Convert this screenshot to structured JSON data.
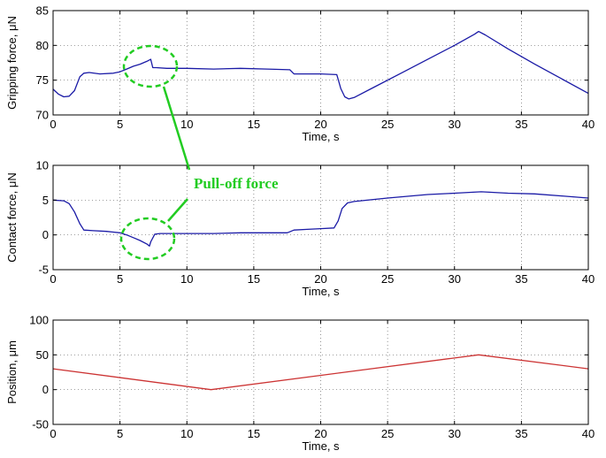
{
  "chart_data": [
    {
      "type": "line",
      "xlabel": "Time, s",
      "ylabel": "Gripping force, μN",
      "xlim": [
        0,
        40
      ],
      "ylim": [
        70,
        85
      ],
      "xticks": [
        0,
        5,
        10,
        15,
        20,
        25,
        30,
        35,
        40
      ],
      "yticks": [
        70,
        75,
        80,
        85
      ],
      "grid": true,
      "line_color": "#1a1aa6",
      "series": [
        {
          "x": [
            0,
            0.4,
            0.8,
            1.2,
            1.6,
            2.0,
            2.3,
            2.7,
            3.5,
            4.5,
            5.0,
            5.5,
            6.0,
            6.5,
            7.0,
            7.3,
            7.45,
            7.7,
            8.5,
            10,
            12,
            14,
            16,
            17.7,
            18.0,
            19,
            20,
            21.2,
            21.5,
            21.8,
            22.1,
            22.5,
            24,
            26,
            28,
            30,
            31.5,
            31.8,
            32.3,
            34,
            36,
            38,
            40
          ],
          "y": [
            73.7,
            73.0,
            72.6,
            72.7,
            73.5,
            75.5,
            76.0,
            76.1,
            75.9,
            76.0,
            76.2,
            76.6,
            77.0,
            77.3,
            77.7,
            78.0,
            76.8,
            76.8,
            76.7,
            76.7,
            76.6,
            76.7,
            76.6,
            76.5,
            75.9,
            75.9,
            75.9,
            75.8,
            73.8,
            72.6,
            72.3,
            72.5,
            74.0,
            76.0,
            78.0,
            80.0,
            81.6,
            82.0,
            81.5,
            79.5,
            77.3,
            75.2,
            73.1
          ]
        }
      ]
    },
    {
      "type": "line",
      "xlabel": "Time, s",
      "ylabel": "Contact force, μN",
      "xlim": [
        0,
        40
      ],
      "ylim": [
        -5,
        10
      ],
      "xticks": [
        0,
        5,
        10,
        15,
        20,
        25,
        30,
        35,
        40
      ],
      "yticks": [
        -5,
        0,
        5,
        10
      ],
      "grid": true,
      "line_color": "#1a1aa6",
      "series": [
        {
          "x": [
            0,
            0.8,
            1.2,
            1.6,
            2.0,
            2.3,
            3.0,
            4.0,
            5.0,
            5.5,
            6.0,
            6.5,
            7.0,
            7.2,
            7.3,
            7.6,
            8.0,
            10,
            12,
            14,
            16,
            17.5,
            18.0,
            19,
            20,
            21.0,
            21.3,
            21.6,
            22,
            22.5,
            25,
            28,
            30,
            32,
            34,
            36,
            38,
            40
          ],
          "y": [
            5.0,
            4.9,
            4.5,
            3.3,
            1.6,
            0.7,
            0.6,
            0.5,
            0.3,
            0.0,
            -0.4,
            -0.8,
            -1.3,
            -1.6,
            -1.0,
            0.1,
            0.2,
            0.2,
            0.2,
            0.3,
            0.3,
            0.3,
            0.7,
            0.8,
            0.9,
            1.0,
            2.0,
            3.8,
            4.6,
            4.8,
            5.3,
            5.8,
            6.0,
            6.2,
            6.0,
            5.9,
            5.6,
            5.3
          ]
        }
      ]
    },
    {
      "type": "line",
      "xlabel": "Time, s",
      "ylabel": "Position, μm",
      "xlim": [
        0,
        40
      ],
      "ylim": [
        -50,
        100
      ],
      "xticks": [
        0,
        5,
        10,
        15,
        20,
        25,
        30,
        35,
        40
      ],
      "yticks": [
        -50,
        0,
        50,
        100
      ],
      "grid": true,
      "line_color": "#cc3333",
      "series": [
        {
          "x": [
            0,
            11.8,
            31.8,
            40
          ],
          "y": [
            30,
            0,
            50,
            30
          ]
        }
      ]
    }
  ],
  "annotation": {
    "label": "Pull-off force",
    "color": "#22cc22"
  }
}
